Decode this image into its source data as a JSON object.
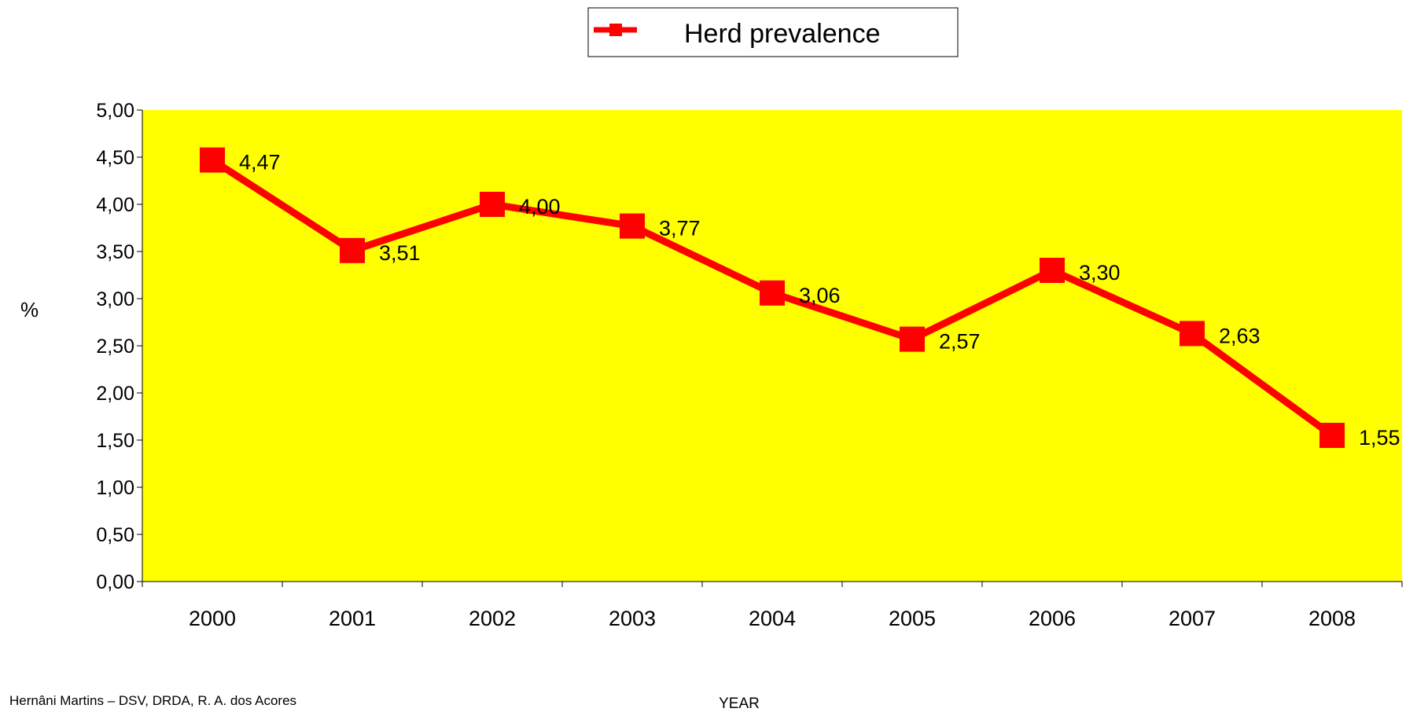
{
  "chart_data": {
    "type": "line",
    "title": "",
    "xlabel": "YEAR",
    "ylabel": "%",
    "categories": [
      "2000",
      "2001",
      "2002",
      "2003",
      "2004",
      "2005",
      "2006",
      "2007",
      "2008"
    ],
    "series": [
      {
        "name": "Herd prevalence",
        "values": [
          4.47,
          3.51,
          4.0,
          3.77,
          3.06,
          2.57,
          3.3,
          2.63,
          1.55
        ]
      }
    ],
    "data_labels": [
      "4,47",
      "3,51",
      "4,00",
      "3,77",
      "3,06",
      "2,57",
      "3,30",
      "2,63",
      "1,55"
    ],
    "y_ticks": [
      "0,00",
      "0,50",
      "1,00",
      "1,50",
      "2,00",
      "2,50",
      "3,00",
      "3,50",
      "4,00",
      "4,50",
      "5,00"
    ],
    "ylim": [
      0,
      5
    ],
    "grid": false,
    "legend_position": "top-center",
    "plot_background_color": "#ffff00",
    "series_color": "#ff0000"
  },
  "footer": {
    "credit": "Hernâni Martins – DSV, DRDA, R. A. dos Acores"
  }
}
